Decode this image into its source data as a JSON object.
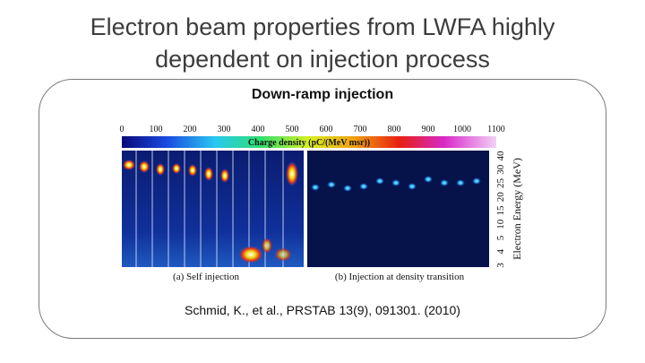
{
  "slide": {
    "title_line1": "Electron beam properties from LWFA highly",
    "title_line2": "dependent on injection process",
    "subtitle": "Down-ramp injection",
    "citation": "Schmid, K., et al., PRSTAB 13(9), 091301. (2010)"
  },
  "figure": {
    "colorbar_ticks": [
      "0",
      "100",
      "200",
      "300",
      "400",
      "500",
      "600",
      "700",
      "800",
      "900",
      "1000",
      "1100"
    ],
    "colorbar_label": "Charge density (pC/(MeV msr))",
    "panel_a_caption": "(a) Self injection",
    "panel_b_caption": "(b) Injection at density transition",
    "energy_axis_label": "Electron Energy (MeV)",
    "energy_ticks": [
      "3",
      "4",
      "5",
      "10",
      "15",
      "20",
      "25",
      "30",
      "40"
    ]
  },
  "colors": {
    "panel_bg": "#0b1e6e",
    "spot": "#2a9cf0",
    "text": "#3c3c3c"
  }
}
